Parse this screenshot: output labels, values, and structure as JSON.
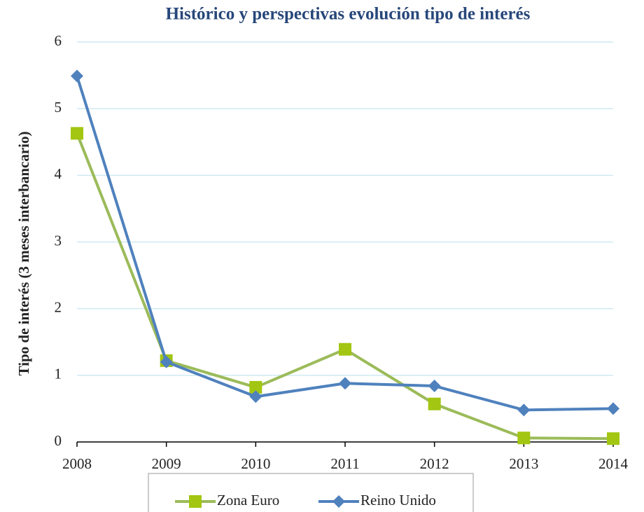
{
  "chart_data": {
    "type": "line",
    "title": "Histórico y perspectivas evolución tipo de interés",
    "y_label": "Tipo de interés (3 meses interbancario)",
    "categories": [
      "2008",
      "2009",
      "2010",
      "2011",
      "2012",
      "2013",
      "2014"
    ],
    "series": [
      {
        "name": "Zona Euro",
        "color": "#9bbb59",
        "marker": "square",
        "marker_color": "#a2c612",
        "values": [
          4.63,
          1.22,
          0.82,
          1.39,
          0.57,
          0.06,
          0.05
        ]
      },
      {
        "name": "Reino Unido",
        "color": "#4f81bd",
        "marker": "diamond",
        "marker_color": "#4f81bd",
        "values": [
          5.49,
          1.2,
          0.68,
          0.88,
          0.84,
          0.48,
          0.5
        ]
      }
    ],
    "ylim": [
      0,
      6
    ],
    "yticks": [
      0,
      1,
      2,
      3,
      4,
      5,
      6
    ],
    "grid": true,
    "legend": "bottom"
  }
}
